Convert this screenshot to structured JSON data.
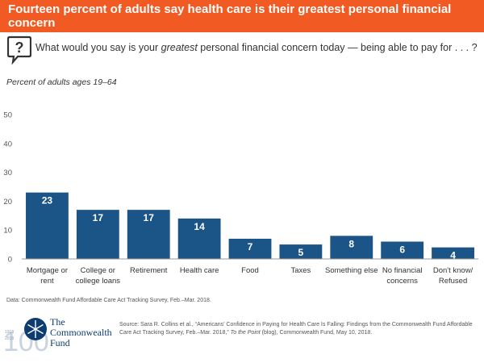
{
  "header": {
    "title": "Fourteen percent of adults say health care is their greatest personal financial concern"
  },
  "question": {
    "prefix": "What would you say is your ",
    "emphasis": "greatest",
    "suffix": " personal financial concern today — being able to pay for . . . ?"
  },
  "colors": {
    "accent": "#f15a22",
    "bar": "#1b5486",
    "navy": "#0d3d6e"
  },
  "chart_data": {
    "type": "bar",
    "title": "",
    "subtitle": "Percent of adults ages 19–64",
    "xlabel": "",
    "ylabel": "Percent of adults ages 19–64",
    "ylim": [
      0,
      50
    ],
    "yticks": [
      0,
      10,
      20,
      30,
      40,
      50
    ],
    "grid": false,
    "categories": [
      [
        "Mortgage or",
        "rent"
      ],
      [
        "College or",
        "college loans"
      ],
      [
        "Retirement"
      ],
      [
        "Health care"
      ],
      [
        "Food"
      ],
      [
        "Taxes"
      ],
      [
        "Something else"
      ],
      [
        "No financial",
        "concerns"
      ],
      [
        "Don't know/",
        "Refused"
      ]
    ],
    "values": [
      23,
      17,
      17,
      14,
      7,
      5,
      8,
      6,
      4
    ],
    "series": [
      {
        "name": "Percent",
        "values": [
          23,
          17,
          17,
          14,
          7,
          5,
          8,
          6,
          4
        ]
      }
    ]
  },
  "footer": {
    "data_note": "Data: Commonwealth Fund Affordable Care Act Tracking Survey, Feb.–Mar. 2018.",
    "source_line1": "Source: Sara R. Collins et al., “Americans’ Confidence in Paying for Health Care Is Falling: Findings from the Commonwealth Fund Affordable",
    "source_line2_before": "Care Act Tracking Survey, Feb.–Mar. 2018,” ",
    "source_line2_italic": "To the Point",
    "source_line2_after": " (blog), Commonwealth Fund, May 10, 2018.",
    "logo_line1": "The",
    "logo_line2": "Commonwealth",
    "logo_line3": "Fund",
    "logo_years_top": "1918",
    "logo_years_bottom": "2018",
    "logo_number": "100"
  }
}
